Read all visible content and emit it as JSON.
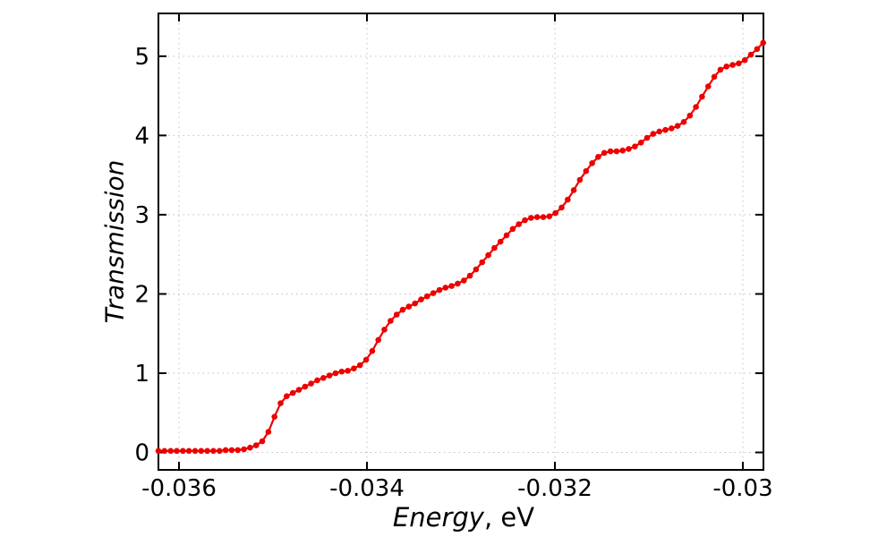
{
  "figure": {
    "background": "#ffffff"
  },
  "chart_data": {
    "type": "line",
    "title": "",
    "xlabel": "Energy, eV",
    "xlabel_italic": "Energy",
    "xlabel_regular": ", eV",
    "ylabel": "Transmission",
    "xlim": [
      -0.036219,
      -0.029781
    ],
    "ylim": [
      -0.22,
      5.54
    ],
    "grid": true,
    "grid_color": "#bfbfbf",
    "axis_color": "#000000",
    "x_ticks": [
      {
        "value": -0.036,
        "label": "-0.036"
      },
      {
        "value": -0.034,
        "label": "-0.034"
      },
      {
        "value": -0.032,
        "label": "-0.032"
      },
      {
        "value": -0.03,
        "label": "-0.03"
      }
    ],
    "y_ticks": [
      {
        "value": 0,
        "label": "0"
      },
      {
        "value": 1,
        "label": "1"
      },
      {
        "value": 2,
        "label": "2"
      },
      {
        "value": 3,
        "label": "3"
      },
      {
        "value": 4,
        "label": "4"
      },
      {
        "value": 5,
        "label": "5"
      }
    ],
    "series": [
      {
        "name": "transmission",
        "color": "#ee0000",
        "marker": "circle",
        "points": [
          [
            -0.036219,
            0.02
          ],
          [
            -0.036154,
            0.02
          ],
          [
            -0.036089,
            0.02
          ],
          [
            -0.036024,
            0.02
          ],
          [
            -0.035959,
            0.02
          ],
          [
            -0.035894,
            0.02
          ],
          [
            -0.035829,
            0.02
          ],
          [
            -0.035764,
            0.02
          ],
          [
            -0.035699,
            0.02
          ],
          [
            -0.035634,
            0.02
          ],
          [
            -0.035569,
            0.02
          ],
          [
            -0.035504,
            0.03
          ],
          [
            -0.035439,
            0.03
          ],
          [
            -0.035374,
            0.03
          ],
          [
            -0.035309,
            0.04
          ],
          [
            -0.035244,
            0.06
          ],
          [
            -0.035179,
            0.09
          ],
          [
            -0.035114,
            0.14
          ],
          [
            -0.035049,
            0.26
          ],
          [
            -0.034984,
            0.45
          ],
          [
            -0.034919,
            0.62
          ],
          [
            -0.034854,
            0.71
          ],
          [
            -0.034789,
            0.75
          ],
          [
            -0.034724,
            0.79
          ],
          [
            -0.034659,
            0.83
          ],
          [
            -0.034594,
            0.87
          ],
          [
            -0.034529,
            0.91
          ],
          [
            -0.034464,
            0.94
          ],
          [
            -0.034399,
            0.97
          ],
          [
            -0.034334,
            1.0
          ],
          [
            -0.034269,
            1.02
          ],
          [
            -0.034204,
            1.03
          ],
          [
            -0.034139,
            1.06
          ],
          [
            -0.034074,
            1.1
          ],
          [
            -0.034009,
            1.17
          ],
          [
            -0.033944,
            1.28
          ],
          [
            -0.033879,
            1.42
          ],
          [
            -0.033814,
            1.55
          ],
          [
            -0.033749,
            1.66
          ],
          [
            -0.033684,
            1.74
          ],
          [
            -0.033619,
            1.8
          ],
          [
            -0.033554,
            1.84
          ],
          [
            -0.033489,
            1.88
          ],
          [
            -0.033424,
            1.93
          ],
          [
            -0.033359,
            1.97
          ],
          [
            -0.033294,
            2.01
          ],
          [
            -0.033229,
            2.05
          ],
          [
            -0.033164,
            2.08
          ],
          [
            -0.033099,
            2.1
          ],
          [
            -0.033034,
            2.13
          ],
          [
            -0.032969,
            2.17
          ],
          [
            -0.032904,
            2.23
          ],
          [
            -0.032839,
            2.31
          ],
          [
            -0.032774,
            2.4
          ],
          [
            -0.032709,
            2.49
          ],
          [
            -0.032644,
            2.58
          ],
          [
            -0.032579,
            2.66
          ],
          [
            -0.032514,
            2.74
          ],
          [
            -0.032449,
            2.82
          ],
          [
            -0.032384,
            2.88
          ],
          [
            -0.032319,
            2.93
          ],
          [
            -0.032254,
            2.96
          ],
          [
            -0.032189,
            2.97
          ],
          [
            -0.032124,
            2.97
          ],
          [
            -0.032059,
            2.98
          ],
          [
            -0.031994,
            3.02
          ],
          [
            -0.031929,
            3.09
          ],
          [
            -0.031864,
            3.19
          ],
          [
            -0.031799,
            3.31
          ],
          [
            -0.031734,
            3.44
          ],
          [
            -0.031669,
            3.55
          ],
          [
            -0.031604,
            3.65
          ],
          [
            -0.031539,
            3.73
          ],
          [
            -0.031474,
            3.78
          ],
          [
            -0.031409,
            3.8
          ],
          [
            -0.031344,
            3.8
          ],
          [
            -0.031279,
            3.81
          ],
          [
            -0.031214,
            3.83
          ],
          [
            -0.031149,
            3.86
          ],
          [
            -0.031084,
            3.91
          ],
          [
            -0.031019,
            3.97
          ],
          [
            -0.030954,
            4.02
          ],
          [
            -0.030889,
            4.05
          ],
          [
            -0.030824,
            4.07
          ],
          [
            -0.030759,
            4.09
          ],
          [
            -0.030694,
            4.12
          ],
          [
            -0.030629,
            4.17
          ],
          [
            -0.030564,
            4.25
          ],
          [
            -0.030499,
            4.36
          ],
          [
            -0.030434,
            4.49
          ],
          [
            -0.030369,
            4.62
          ],
          [
            -0.030304,
            4.74
          ],
          [
            -0.030239,
            4.83
          ],
          [
            -0.030174,
            4.87
          ],
          [
            -0.030109,
            4.89
          ],
          [
            -0.030044,
            4.91
          ],
          [
            -0.029979,
            4.95
          ],
          [
            -0.029914,
            5.02
          ],
          [
            -0.029849,
            5.09
          ],
          [
            -0.029784,
            5.17
          ]
        ]
      }
    ]
  }
}
